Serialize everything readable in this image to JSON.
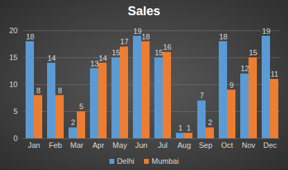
{
  "chart_data": {
    "type": "bar",
    "title": "Sales",
    "categories": [
      "Jan",
      "Feb",
      "Mar",
      "Apr",
      "May",
      "Jun",
      "Jul",
      "Aug",
      "Sep",
      "Oct",
      "Nov",
      "Dec"
    ],
    "series": [
      {
        "name": "Delhi",
        "color": "#5b9bd5",
        "values": [
          18,
          14,
          2,
          13,
          15,
          19,
          15,
          1,
          7,
          18,
          12,
          19
        ]
      },
      {
        "name": "Mumbai",
        "color": "#ed7d31",
        "values": [
          8,
          8,
          5,
          14,
          17,
          18,
          16,
          1,
          2,
          9,
          15,
          11
        ]
      }
    ],
    "ylim": [
      0,
      20
    ],
    "yticks": [
      0,
      5,
      10,
      15,
      20
    ],
    "grid": true,
    "data_labels": true,
    "legend": "bottom"
  }
}
